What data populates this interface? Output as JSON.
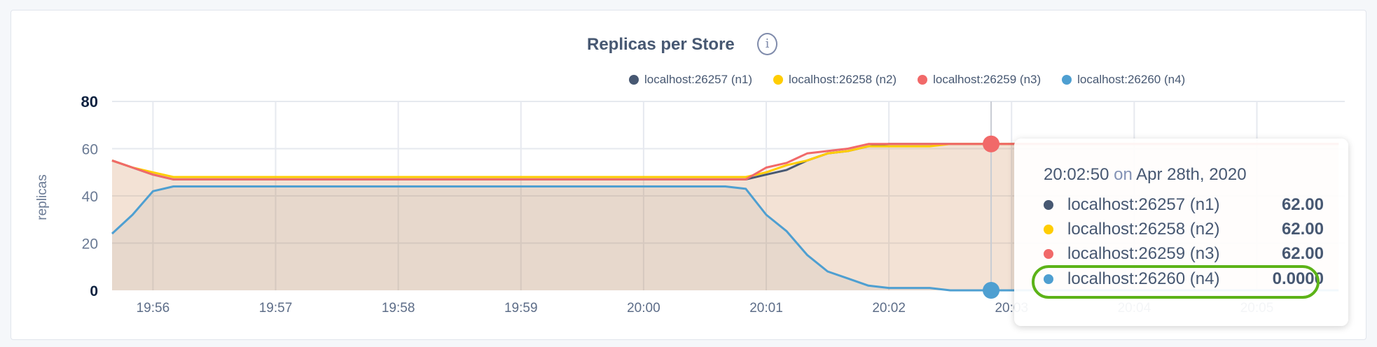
{
  "chart_data": {
    "type": "area",
    "title": "Replicas per Store",
    "ylabel": "replicas",
    "xlabel": "",
    "ylim": [
      0,
      80
    ],
    "yticks": [
      "0",
      "20",
      "40",
      "60",
      "80"
    ],
    "xticks": [
      "19:56",
      "19:57",
      "19:58",
      "19:59",
      "20:00",
      "20:01",
      "20:02",
      "20:03",
      "20:04",
      "20:05"
    ],
    "xlim": [
      "19:55:40",
      "20:05:43"
    ],
    "grid": true,
    "legend_position": "top-right",
    "x": [
      "19:55:40",
      "19:55:50",
      "19:56:00",
      "19:56:10",
      "19:56:20",
      "19:56:30",
      "19:56:40",
      "19:56:50",
      "19:57:00",
      "19:57:10",
      "19:57:20",
      "19:57:30",
      "19:57:40",
      "19:57:50",
      "19:58:00",
      "19:58:10",
      "19:58:20",
      "19:58:30",
      "19:58:40",
      "19:58:50",
      "19:59:00",
      "19:59:10",
      "19:59:20",
      "19:59:30",
      "19:59:40",
      "19:59:50",
      "20:00:00",
      "20:00:10",
      "20:00:20",
      "20:00:30",
      "20:00:40",
      "20:00:50",
      "20:01:00",
      "20:01:10",
      "20:01:20",
      "20:01:30",
      "20:01:40",
      "20:01:50",
      "20:02:00",
      "20:02:10",
      "20:02:20",
      "20:02:30",
      "20:02:40",
      "20:02:50",
      "20:03:00",
      "20:03:10",
      "20:03:20",
      "20:03:30",
      "20:03:40",
      "20:03:50",
      "20:04:00",
      "20:04:10",
      "20:04:20",
      "20:04:30",
      "20:04:40",
      "20:04:50",
      "20:05:00",
      "20:05:10",
      "20:05:20",
      "20:05:30",
      "20:05:40"
    ],
    "series": [
      {
        "name": "localhost:26257 (n1)",
        "color": "#475872",
        "values": [
          55,
          52,
          49,
          47,
          47,
          47,
          47,
          47,
          47,
          47,
          47,
          47,
          47,
          47,
          47,
          47,
          47,
          47,
          47,
          47,
          47,
          47,
          47,
          47,
          47,
          47,
          47,
          47,
          47,
          47,
          47,
          47,
          49,
          51,
          55,
          58,
          59,
          61,
          62,
          62,
          62,
          62,
          62,
          62,
          62,
          62,
          62,
          62,
          62,
          62,
          62,
          62,
          62,
          62,
          62,
          62,
          62,
          62,
          62,
          62,
          62
        ]
      },
      {
        "name": "localhost:26258 (n2)",
        "color": "#ffcd02",
        "values": [
          55,
          52,
          50,
          48,
          48,
          48,
          48,
          48,
          48,
          48,
          48,
          48,
          48,
          48,
          48,
          48,
          48,
          48,
          48,
          48,
          48,
          48,
          48,
          48,
          48,
          48,
          48,
          48,
          48,
          48,
          48,
          48,
          50,
          53,
          55,
          58,
          59,
          61,
          61,
          61,
          61,
          62,
          62,
          62,
          62,
          62,
          62,
          62,
          62,
          62,
          62,
          62,
          62,
          62,
          62,
          62,
          62,
          62,
          62,
          62,
          62
        ]
      },
      {
        "name": "localhost:26259 (n3)",
        "color": "#f16969",
        "values": [
          55,
          52,
          49,
          47,
          47,
          47,
          47,
          47,
          47,
          47,
          47,
          47,
          47,
          47,
          47,
          47,
          47,
          47,
          47,
          47,
          47,
          47,
          47,
          47,
          47,
          47,
          47,
          47,
          47,
          47,
          47,
          47,
          52,
          54,
          58,
          59,
          60,
          62,
          62,
          62,
          62,
          62,
          62,
          62,
          62,
          62,
          62,
          62,
          62,
          62,
          62,
          62,
          62,
          62,
          62,
          62,
          62,
          62,
          62,
          62,
          62
        ]
      },
      {
        "name": "localhost:26260 (n4)",
        "color": "#4e9fd1",
        "values": [
          24,
          32,
          42,
          44,
          44,
          44,
          44,
          44,
          44,
          44,
          44,
          44,
          44,
          44,
          44,
          44,
          44,
          44,
          44,
          44,
          44,
          44,
          44,
          44,
          44,
          44,
          44,
          44,
          44,
          44,
          44,
          43,
          32,
          25,
          15,
          8,
          5,
          2,
          1,
          1,
          1,
          0,
          0,
          0,
          0,
          0,
          0,
          0,
          0,
          0,
          0,
          0,
          0,
          0,
          0,
          0,
          0,
          0,
          0,
          0,
          0
        ]
      }
    ],
    "hover": {
      "x": "20:02:50"
    }
  },
  "info_icon": "info-circle-icon",
  "tooltip": {
    "time": "20:02:50",
    "on": "on",
    "date": "Apr 28th, 2020",
    "rows": [
      {
        "name": "localhost:26257 (n1)",
        "value": "62.00",
        "color": "#475872"
      },
      {
        "name": "localhost:26258 (n2)",
        "value": "62.00",
        "color": "#ffcd02"
      },
      {
        "name": "localhost:26259 (n3)",
        "value": "62.00",
        "color": "#f16969"
      },
      {
        "name": "localhost:26260 (n4)",
        "value": "0.0000",
        "color": "#4e9fd1"
      }
    ],
    "highlight_color": "#5cb318"
  }
}
